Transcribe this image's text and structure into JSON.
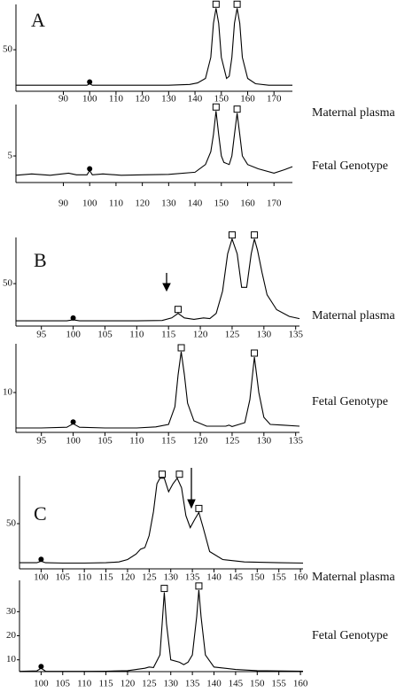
{
  "chart_data": [
    {
      "type": "line",
      "panel": "A",
      "label": "Maternal plasma",
      "color": "#000",
      "xlim": [
        72,
        177
      ],
      "xticks": [
        90,
        100,
        110,
        120,
        130,
        140,
        150,
        160,
        170
      ],
      "ylim": [
        -5,
        110
      ],
      "yticks": [
        50
      ],
      "x": [
        72,
        80,
        90,
        95,
        99,
        100,
        101,
        105,
        110,
        120,
        130,
        138,
        141,
        144,
        146,
        147,
        148,
        149,
        150,
        152,
        153,
        154,
        155,
        156,
        157,
        158,
        160,
        163,
        168,
        177
      ],
      "values": [
        3,
        3,
        3,
        3,
        3,
        5,
        3,
        3,
        3,
        3,
        3,
        4,
        6,
        12,
        40,
        85,
        105,
        85,
        40,
        12,
        15,
        40,
        85,
        105,
        85,
        40,
        12,
        5,
        3,
        3
      ],
      "peak_markers": {
        "x": [
          148,
          156
        ],
        "values": [
          105,
          105
        ]
      },
      "dot_markers": {
        "x": [
          100
        ],
        "values": [
          5
        ]
      }
    },
    {
      "type": "line",
      "label": "Fetal Genotype",
      "color": "#000",
      "xlim": [
        72,
        177
      ],
      "xticks": [
        90,
        100,
        110,
        120,
        130,
        140,
        150,
        160,
        170
      ],
      "ylim": [
        -1.2,
        17
      ],
      "yticks": [
        5
      ],
      "x": [
        72,
        78,
        85,
        92,
        95,
        99,
        100,
        101,
        105,
        112,
        120,
        130,
        140,
        144,
        146,
        147,
        148,
        149,
        150,
        151,
        153,
        154,
        155,
        156,
        157,
        158,
        160,
        164,
        170,
        174,
        177
      ],
      "values": [
        0.5,
        0.8,
        0.5,
        1,
        0.6,
        0.6,
        1.6,
        0.6,
        0.8,
        0.5,
        0.6,
        0.7,
        1.2,
        3,
        6,
        10,
        15.5,
        10,
        5,
        3.5,
        3,
        5,
        10,
        15,
        10,
        5,
        3,
        2,
        1,
        1.8,
        2.5
      ],
      "peak_markers": {
        "x": [
          148,
          156
        ],
        "values": [
          15.5,
          15
        ]
      },
      "dot_markers": {
        "x": [
          100
        ],
        "values": [
          1.6
        ]
      }
    },
    {
      "type": "line",
      "panel": "B",
      "label": "Maternal plasma",
      "color": "#000",
      "xlim": [
        91,
        135.6
      ],
      "xticks": [
        95,
        100,
        105,
        110,
        115,
        120,
        125,
        130,
        135
      ],
      "ylim": [
        -7,
        112
      ],
      "yticks": [
        50
      ],
      "x": [
        91,
        95,
        99,
        100,
        101,
        105,
        110,
        114,
        115.5,
        116.5,
        117.5,
        119,
        120.5,
        121.5,
        122.5,
        123.5,
        124.3,
        125,
        125.8,
        126.5,
        127.3,
        128,
        128.5,
        129,
        129.7,
        130.5,
        132,
        134,
        135.6
      ],
      "values": [
        0,
        0,
        0,
        1.5,
        0,
        0,
        0,
        0.5,
        4,
        10,
        4,
        2,
        4,
        3,
        10,
        40,
        90,
        110,
        90,
        45,
        45,
        90,
        110,
        95,
        65,
        35,
        15,
        6,
        3
      ],
      "peak_markers": {
        "x": [
          116.5,
          125,
          128.5
        ],
        "values": [
          10,
          110,
          110
        ]
      },
      "dot_markers": {
        "x": [
          100
        ],
        "values": [
          1.5
        ]
      }
    },
    {
      "type": "line",
      "label": "Fetal Genotype",
      "color": "#000",
      "xlim": [
        91,
        135.6
      ],
      "xticks": [
        95,
        100,
        105,
        110,
        115,
        120,
        125,
        130,
        135
      ],
      "ylim": [
        -1.25,
        23.75
      ],
      "yticks": [
        10
      ],
      "x": [
        91,
        95,
        99,
        100,
        101,
        105,
        110,
        113,
        115,
        116,
        116.5,
        117,
        117.5,
        118,
        119,
        121,
        124,
        124.5,
        125,
        127,
        127.8,
        128.5,
        129.2,
        130,
        131,
        133,
        135.6
      ],
      "values": [
        0,
        0,
        0.2,
        1.2,
        0.2,
        0,
        0,
        0.3,
        1,
        6,
        15,
        21.5,
        15,
        7,
        2,
        0.5,
        0.5,
        0.8,
        0.4,
        1.5,
        8,
        20,
        10,
        3,
        1,
        0.8,
        0.5
      ],
      "peak_markers": {
        "x": [
          117,
          128.5
        ],
        "values": [
          21.5,
          20
        ]
      },
      "dot_markers": {
        "x": [
          100
        ],
        "values": [
          1.2
        ]
      }
    },
    {
      "type": "line",
      "panel": "C",
      "label": "Maternal plasma",
      "color": "#000",
      "xlim": [
        95,
        160.6
      ],
      "xticks": [
        100,
        105,
        110,
        115,
        120,
        125,
        130,
        135,
        140,
        145,
        150,
        155,
        160
      ],
      "ylim": [
        -6.7,
        110
      ],
      "yticks": [
        50
      ],
      "x": [
        95,
        99,
        100,
        101,
        105,
        110,
        115,
        118,
        120,
        122,
        123,
        124,
        125,
        126,
        126.8,
        127.5,
        128.5,
        129.5,
        130.5,
        131.5,
        132.5,
        133.5,
        134.5,
        135.5,
        136.5,
        137.5,
        139,
        142,
        147,
        155,
        160.6
      ],
      "values": [
        1,
        1,
        3,
        1,
        0.5,
        0.5,
        1,
        2,
        5,
        12,
        18,
        20,
        35,
        65,
        100,
        107,
        107,
        90,
        100,
        107,
        95,
        60,
        45,
        55,
        64,
        45,
        15,
        5,
        2,
        1,
        0.5
      ],
      "peak_markers": {
        "x": [
          128,
          132,
          136.5
        ],
        "values": [
          107,
          107,
          64
        ]
      },
      "dot_markers": {
        "x": [
          100
        ],
        "values": [
          3
        ]
      }
    },
    {
      "type": "line",
      "label": "Fetal Genotype",
      "color": "#000",
      "xlim": [
        95,
        160.6
      ],
      "xticks": [
        100,
        105,
        110,
        115,
        120,
        125,
        130,
        135,
        140,
        145,
        150,
        155,
        160
      ],
      "ylim": [
        5.1,
        43
      ],
      "yticks": [
        10,
        20,
        30
      ],
      "x": [
        95,
        99,
        100,
        101,
        105,
        110,
        115,
        120,
        124,
        125,
        126,
        127.5,
        128,
        128.5,
        129,
        130,
        132,
        133,
        134,
        135,
        136,
        136.5,
        137,
        138,
        140,
        145,
        150,
        160.6
      ],
      "values": [
        5.2,
        5.4,
        6.5,
        5.3,
        5.2,
        5.2,
        5.3,
        5.5,
        6.5,
        7,
        6.8,
        12,
        25,
        38,
        25,
        10,
        9,
        8,
        9,
        12,
        28,
        39,
        28,
        12,
        7,
        6,
        5.5,
        5.3
      ],
      "peak_markers": {
        "x": [
          128.5,
          136.5
        ],
        "values": [
          38,
          39
        ]
      },
      "dot_markers": {
        "x": [
          100
        ],
        "values": [
          6.5
        ]
      }
    }
  ]
}
